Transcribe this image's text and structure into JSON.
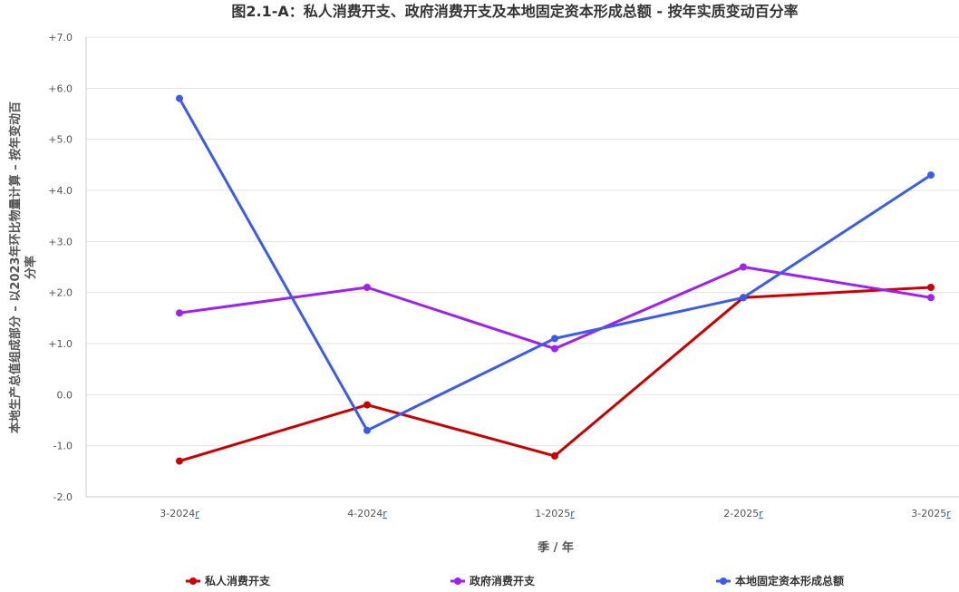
{
  "chart_data": {
    "type": "line",
    "title": "图2.1-A：私人消费开支、政府消费开支及本地固定资本形成总额 - 按年实质变动百分率",
    "xlabel": "季 / 年",
    "ylabel_lines": [
      "本地生产总值组成部分 – 以2023年环比物量计算 – 按年变动百",
      "分率"
    ],
    "categories": [
      "3-2024",
      "4-2024",
      "1-2025",
      "2-2025",
      "3-2025"
    ],
    "revision_mark": "r",
    "ylim": [
      -2.0,
      7.0
    ],
    "yticks": [
      "+7.0",
      "+6.0",
      "+5.0",
      "+4.0",
      "+3.0",
      "+2.0",
      "+1.0",
      "0.0",
      "-1.0",
      "-2.0"
    ],
    "grid": true,
    "legend_position": "bottom",
    "series": [
      {
        "name": "私人消费开支",
        "color": "#cc0000",
        "values": [
          -1.3,
          -0.2,
          -1.2,
          1.9,
          2.1
        ]
      },
      {
        "name": "政府消费开支",
        "color": "#a020f0",
        "values": [
          1.6,
          2.1,
          0.9,
          2.5,
          1.9
        ]
      },
      {
        "name": "本地固定资本形成总额",
        "color": "#3b5bf0",
        "values": [
          5.8,
          -0.7,
          1.1,
          1.9,
          4.3
        ]
      }
    ]
  }
}
